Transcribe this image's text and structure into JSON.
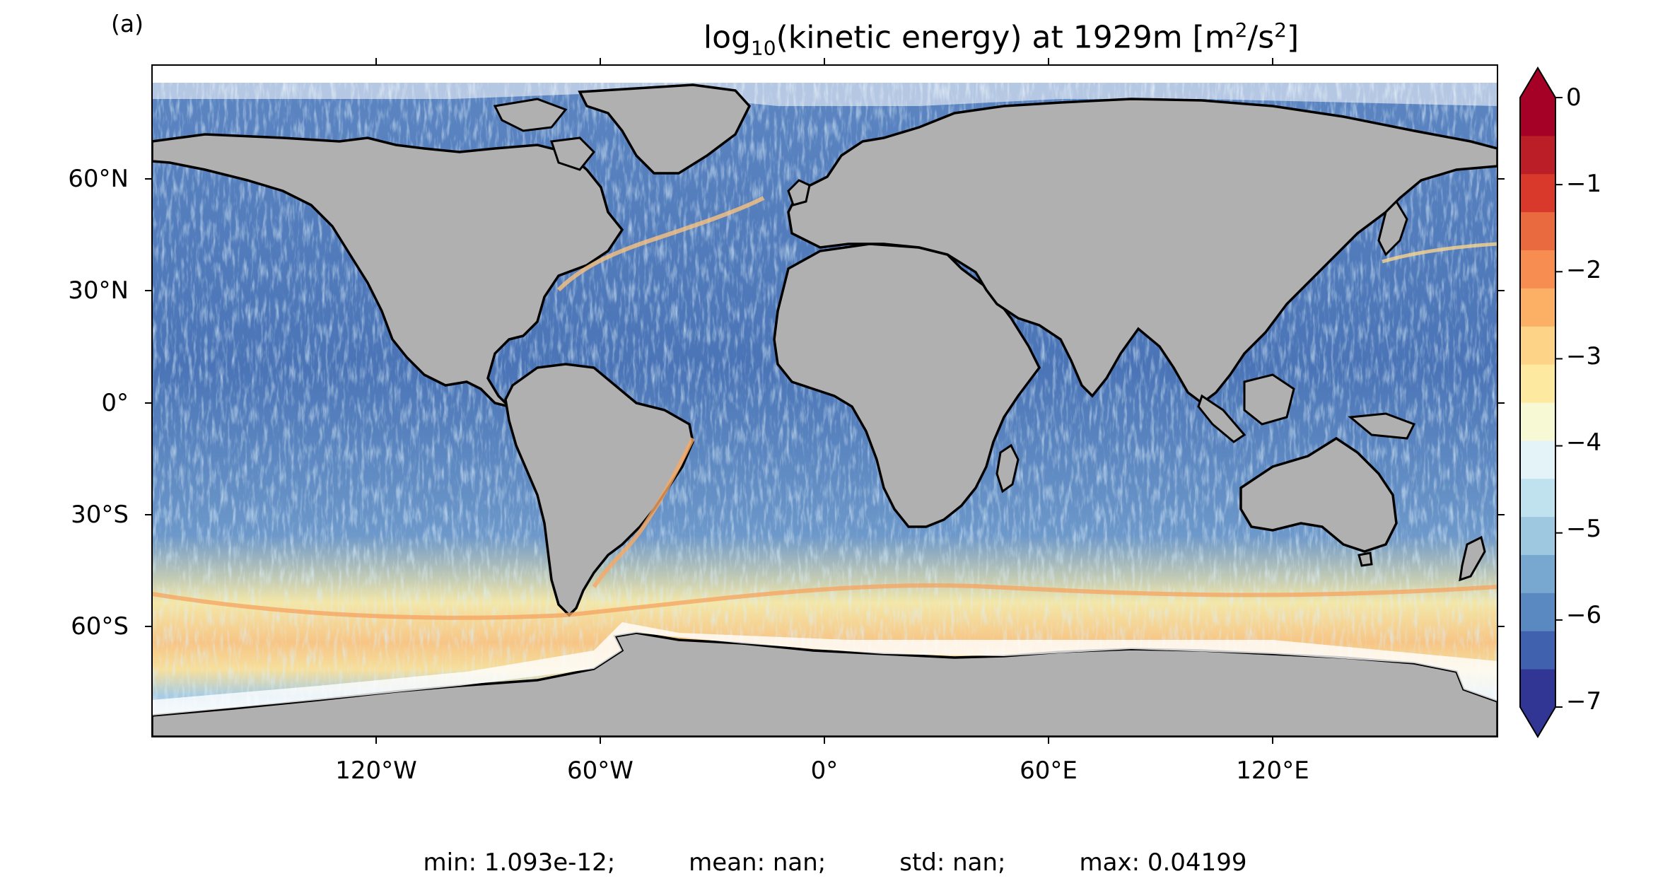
{
  "panel_label": "(a)",
  "title": {
    "prefix": "log",
    "sub": "10",
    "middle": "(kinetic energy) at 1929m [m",
    "sup1": "2",
    "mid2": "/s",
    "sup2": "2",
    "suffix": "]"
  },
  "map": {
    "projection": "plate-carree",
    "land_color": "#b0b0b0",
    "coastline_color": "#000000",
    "no_data_color": "#ffffff",
    "lat_ticks": [
      "60°N",
      "30°N",
      "0°",
      "30°S",
      "60°S"
    ],
    "lon_ticks": [
      "120°W",
      "60°W",
      "0°",
      "60°E",
      "120°E"
    ]
  },
  "colorbar": {
    "range": [
      -7,
      0
    ],
    "ticks": [
      "0",
      "−1",
      "−2",
      "−3",
      "−4",
      "−5",
      "−6",
      "−7"
    ],
    "extend": "both",
    "colors": [
      "#313695",
      "#4061ad",
      "#5a88c0",
      "#78a8d0",
      "#9dc8e0",
      "#c0e1ee",
      "#e4f3f7",
      "#f6f9d4",
      "#fee9a0",
      "#fdd487",
      "#fcb065",
      "#f88d52",
      "#ea6a3f",
      "#d8392b",
      "#bb1e26",
      "#a50026"
    ],
    "over_color": "#a50026",
    "under_color": "#313695"
  },
  "stats": {
    "min": "min: 1.093e-12;",
    "mean": "mean: nan;",
    "std": "std: nan;",
    "max": "max: 0.04199"
  }
}
